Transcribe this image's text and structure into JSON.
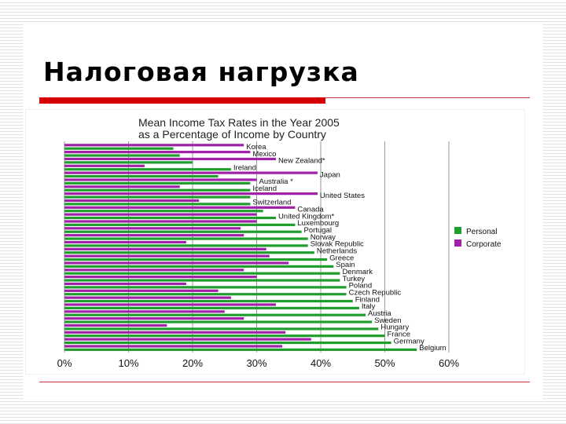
{
  "slide": {
    "title": "Налоговая нагрузка"
  },
  "chart_data": {
    "type": "bar",
    "title": "Mean Income Tax Rates in the Year 2005",
    "subtitle": "as a Percentage of Income by Country",
    "xlim": [
      0,
      60
    ],
    "x_ticks": [
      "0%",
      "10%",
      "20%",
      "30%",
      "40%",
      "50%",
      "60%"
    ],
    "x_tick_values": [
      0,
      10,
      20,
      30,
      40,
      50,
      60
    ],
    "grid": true,
    "legend_position": "right",
    "categories": [
      "Korea",
      "Mexico",
      "New Zealand*",
      "Ireland",
      "Japan",
      "Australia *",
      "Iceland",
      "United States",
      "Switzerland",
      "Canada",
      "United Kingdom*",
      "Luxembourg",
      "Portugal",
      "Norway",
      "Slovak Republic",
      "Netherlands",
      "Greece",
      "Spain",
      "Denmark",
      "Turkey",
      "Poland",
      "Czech Republic",
      "Finland",
      "Italy",
      "Austria",
      "Sweden",
      "Hungary",
      "France",
      "Germany",
      "Belgium"
    ],
    "series": [
      {
        "name": "Personal",
        "color": "#1f9e2e",
        "values": [
          17,
          18,
          20,
          26,
          24,
          29,
          29,
          29,
          29,
          31,
          33,
          36,
          37,
          38,
          38,
          39,
          41,
          42,
          43,
          43,
          44,
          44,
          45,
          46,
          47,
          48,
          49,
          50,
          51,
          55
        ]
      },
      {
        "name": "Corporate",
        "color": "#a020a8",
        "values": [
          28,
          29,
          33,
          12.5,
          39.5,
          30,
          18,
          39.5,
          21,
          36,
          30,
          30,
          27.5,
          28,
          19,
          31.5,
          32,
          35,
          28,
          30,
          19,
          24,
          26,
          33,
          25,
          28,
          16,
          34.5,
          38.5,
          34
        ]
      }
    ]
  }
}
